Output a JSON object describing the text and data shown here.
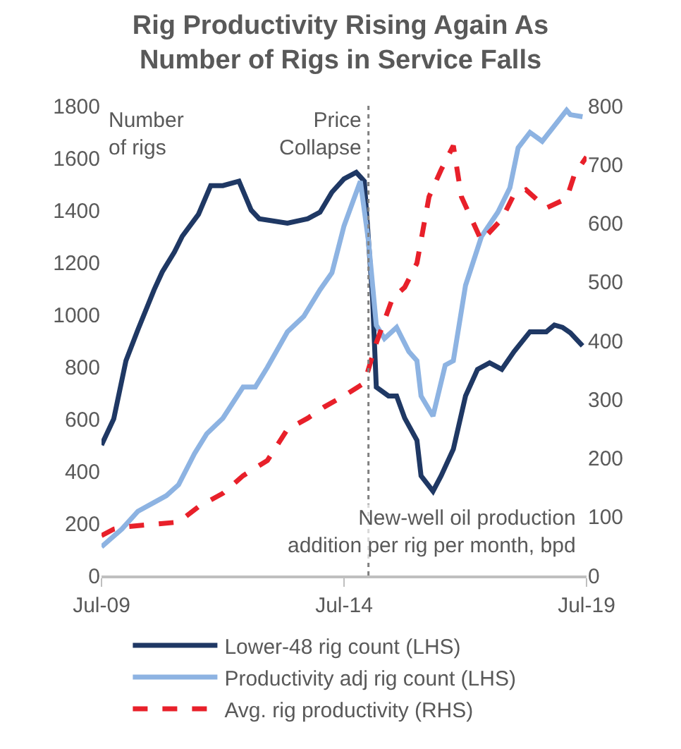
{
  "chart_data": {
    "type": "line",
    "title": "Rig Productivity Rising Again As\nNumber of Rigs in Service Falls",
    "xlim": [
      "2009-07",
      "2019-07"
    ],
    "xticks": [
      {
        "value": "2009-07",
        "label": "Jul-09"
      },
      {
        "value": "2014-07",
        "label": "Jul-14"
      },
      {
        "value": "2019-07",
        "label": "Jul-19"
      }
    ],
    "ylim": [
      0,
      1800
    ],
    "yticks": [
      0,
      200,
      400,
      600,
      800,
      1000,
      1200,
      1400,
      1600,
      1800
    ],
    "y2lim": [
      0,
      800
    ],
    "y2ticks": [
      0,
      100,
      200,
      300,
      400,
      500,
      600,
      700,
      800
    ],
    "legend": "bottom",
    "series": [
      {
        "name": "Lower-48 rig count (LHS)",
        "color": "#1f3864",
        "line_style": "solid",
        "x": [
          "2009-07",
          "2009-10",
          "2010-01",
          "2010-04",
          "2010-08",
          "2010-10",
          "2011-01",
          "2011-03",
          "2011-07",
          "2011-10",
          "2012-01",
          "2012-05",
          "2012-08",
          "2012-10",
          "2013-05",
          "2013-10",
          "2014-01",
          "2014-04",
          "2014-07",
          "2014-10",
          "2014-12",
          "2015-02",
          "2015-03",
          "2015-06",
          "2015-08",
          "2015-10",
          "2016-01",
          "2016-02",
          "2016-05",
          "2016-07",
          "2016-10",
          "2017-01",
          "2017-04",
          "2017-07",
          "2017-10",
          "2018-01",
          "2018-05",
          "2018-09",
          "2018-11",
          "2019-01",
          "2019-03",
          "2019-06"
        ],
        "values": [
          500,
          600,
          823,
          942,
          1095,
          1163,
          1240,
          1300,
          1384,
          1494,
          1494,
          1511,
          1400,
          1367,
          1350,
          1367,
          1392,
          1469,
          1520,
          1545,
          1511,
          1061,
          722,
          688,
          688,
          603,
          518,
          382,
          323,
          382,
          484,
          688,
          790,
          815,
          790,
          858,
          934,
          934,
          960,
          951,
          930,
          880
        ]
      },
      {
        "name": "Productivity adj rig count (LHS)",
        "color": "#8db3e2",
        "line_style": "solid",
        "x": [
          "2009-07",
          "2009-12",
          "2010-04",
          "2010-08",
          "2010-11",
          "2011-02",
          "2011-06",
          "2011-09",
          "2012-01",
          "2012-06",
          "2012-09",
          "2012-12",
          "2013-05",
          "2013-09",
          "2014-01",
          "2014-04",
          "2014-07",
          "2014-11",
          "2015-01",
          "2015-03",
          "2015-05",
          "2015-08",
          "2015-11",
          "2016-01",
          "2016-02",
          "2016-05",
          "2016-08",
          "2016-10",
          "2017-01",
          "2017-05",
          "2017-09",
          "2017-12",
          "2018-02",
          "2018-05",
          "2018-08",
          "2019-02",
          "2019-03",
          "2019-06"
        ],
        "values": [
          110,
          178,
          246,
          280,
          306,
          348,
          467,
          543,
          603,
          722,
          722,
          798,
          934,
          993,
          1095,
          1160,
          1340,
          1511,
          1282,
          959,
          908,
          951,
          858,
          823,
          688,
          611,
          806,
          823,
          1112,
          1299,
          1392,
          1486,
          1639,
          1698,
          1664,
          1783,
          1766,
          1758
        ]
      },
      {
        "name": "Avg. rig productivity (RHS)",
        "color": "#e8202a",
        "line_style": "dashed",
        "axis": "y2",
        "x": [
          "2009-07",
          "2009-10",
          "2010-01",
          "2011-02",
          "2011-07",
          "2012-01",
          "2012-06",
          "2012-12",
          "2013-05",
          "2013-10",
          "2014-02",
          "2014-07",
          "2014-12",
          "2015-03",
          "2015-07",
          "2015-10",
          "2016-01",
          "2016-04",
          "2016-07",
          "2016-10",
          "2016-12",
          "2017-05",
          "2017-10",
          "2018-01",
          "2018-04",
          "2018-09",
          "2019-02",
          "2019-04",
          "2019-07"
        ],
        "values": [
          68,
          79,
          83,
          91,
          117,
          140,
          170,
          196,
          249,
          268,
          287,
          306,
          328,
          396,
          472,
          491,
          532,
          645,
          691,
          732,
          645,
          570,
          607,
          649,
          657,
          626,
          642,
          683,
          713
        ]
      }
    ],
    "ref_lines": [
      {
        "axis": "x",
        "value": "2015-01",
        "label": "Price\nCollapse",
        "color": "#808080",
        "line_style": "dotted"
      }
    ],
    "annotations": [
      "Number\nof rigs",
      "New-well oil production\naddition per rig per month, bpd"
    ]
  }
}
